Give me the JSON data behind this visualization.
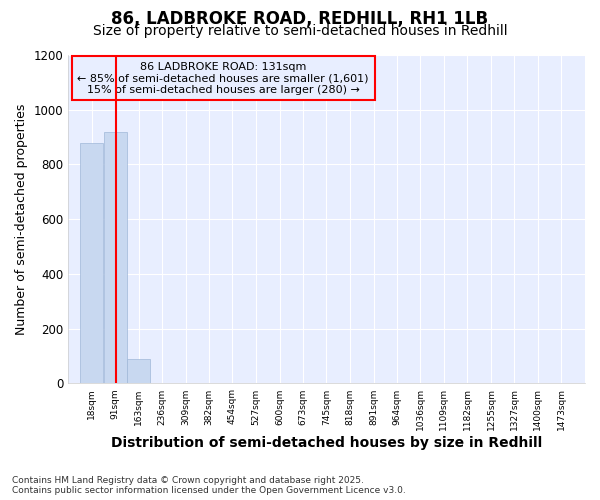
{
  "title": "86, LADBROKE ROAD, REDHILL, RH1 1LB",
  "subtitle": "Size of property relative to semi-detached houses in Redhill",
  "xlabel": "Distribution of semi-detached houses by size in Redhill",
  "ylabel": "Number of semi-detached properties",
  "bin_labels": [
    "18sqm",
    "91sqm",
    "163sqm",
    "236sqm",
    "309sqm",
    "382sqm",
    "454sqm",
    "527sqm",
    "600sqm",
    "673sqm",
    "745sqm",
    "818sqm",
    "891sqm",
    "964sqm",
    "1036sqm",
    "1109sqm",
    "1182sqm",
    "1255sqm",
    "1327sqm",
    "1400sqm",
    "1473sqm"
  ],
  "bin_edges": [
    18,
    91,
    163,
    236,
    309,
    382,
    454,
    527,
    600,
    673,
    745,
    818,
    891,
    964,
    1036,
    1109,
    1182,
    1255,
    1327,
    1400,
    1473
  ],
  "bar_heights": [
    880,
    920,
    90,
    0,
    0,
    0,
    0,
    0,
    0,
    0,
    0,
    0,
    0,
    0,
    0,
    0,
    0,
    0,
    0,
    0
  ],
  "bar_color": "#c8d8f0",
  "bar_edgecolor": "#a0b8d8",
  "property_line_x": 131,
  "property_line_color": "red",
  "annotation_title": "86 LADBROKE ROAD: 131sqm",
  "annotation_line1": "← 85% of semi-detached houses are smaller (1,601)",
  "annotation_line2": "15% of semi-detached houses are larger (280) →",
  "annotation_box_color": "red",
  "ylim": [
    0,
    1200
  ],
  "fig_background_color": "#ffffff",
  "plot_background_color": "#e8eeff",
  "grid_color": "#ffffff",
  "footer_line1": "Contains HM Land Registry data © Crown copyright and database right 2025.",
  "footer_line2": "Contains public sector information licensed under the Open Government Licence v3.0.",
  "title_fontsize": 12,
  "subtitle_fontsize": 10,
  "ylabel_fontsize": 9,
  "xlabel_fontsize": 10
}
